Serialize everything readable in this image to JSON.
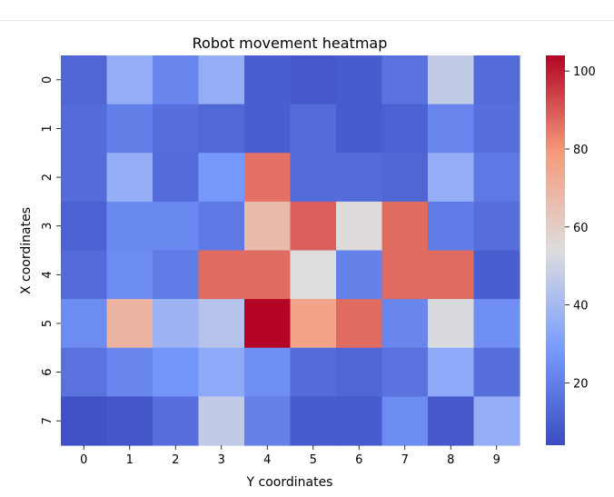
{
  "chart_data": {
    "type": "heatmap",
    "title": "Robot movement heatmap",
    "xlabel": "Y coordinates",
    "ylabel": "X coordinates",
    "x_categories": [
      "0",
      "1",
      "2",
      "3",
      "4",
      "5",
      "6",
      "7",
      "8",
      "9"
    ],
    "y_categories": [
      "0",
      "1",
      "2",
      "3",
      "4",
      "5",
      "6",
      "7"
    ],
    "values": [
      [
        12,
        36,
        22,
        36,
        10,
        8,
        9,
        16,
        47,
        14
      ],
      [
        14,
        20,
        15,
        13,
        10,
        14,
        9,
        11,
        22,
        15
      ],
      [
        14,
        36,
        14,
        28,
        86,
        14,
        14,
        12,
        36,
        18
      ],
      [
        11,
        23,
        23,
        18,
        67,
        89,
        55,
        87,
        19,
        15
      ],
      [
        14,
        24,
        19,
        87,
        87,
        54,
        21,
        87,
        87,
        10
      ],
      [
        24,
        70,
        38,
        44,
        104,
        76,
        87,
        22,
        53,
        25
      ],
      [
        16,
        22,
        27,
        34,
        25,
        14,
        12,
        16,
        34,
        15
      ],
      [
        6,
        7,
        15,
        47,
        21,
        9,
        9,
        24,
        8,
        36
      ]
    ],
    "colormap": "coolwarm",
    "vmin": 4,
    "vmax": 104,
    "colorbar_ticks": [
      20,
      40,
      60,
      80,
      100
    ],
    "legend": "colorbar-right",
    "grid": false
  }
}
